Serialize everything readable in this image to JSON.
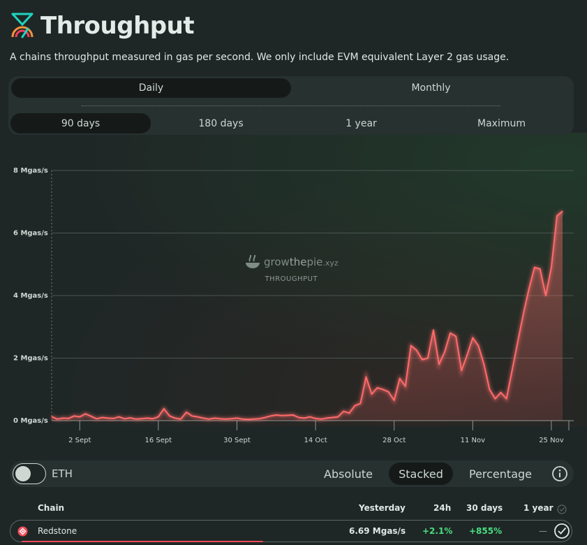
{
  "header": {
    "title": "Throughput",
    "subtitle": "A chains throughput measured in gas per second. We only include EVM equivalent Layer 2 gas usage."
  },
  "timespan_tabs": [
    "Daily",
    "Monthly"
  ],
  "range_tabs": [
    "90 days",
    "180 days",
    "1 year",
    "Maximum"
  ],
  "watermark": {
    "brand_grow": "grow",
    "brand_the": "the",
    "brand_pie": "pie",
    "brand_xyz": ".xyz",
    "caption": "THROUGHPUT"
  },
  "controls": {
    "toggle_label": "ETH",
    "modes": [
      "Absolute",
      "Stacked",
      "Percentage"
    ]
  },
  "table": {
    "headers": {
      "chain": "Chain",
      "yesterday": "Yesterday",
      "h24": "24h",
      "d30": "30 days",
      "y1": "1 year"
    },
    "rows": [
      {
        "chain": "Redstone",
        "yesterday": "6.69 Mgas/s",
        "h24": "+2.1%",
        "d30": "+855%",
        "y1": "—"
      }
    ]
  },
  "colors": {
    "series": "#ff6b6b",
    "positive": "#4ade80",
    "accent_redstone": "#ef4c5b"
  },
  "chart_data": {
    "type": "area",
    "series": [
      {
        "name": "Redstone",
        "values": [
          0.13,
          0.05,
          0.08,
          0.07,
          0.15,
          0.12,
          0.22,
          0.14,
          0.06,
          0.1,
          0.08,
          0.07,
          0.12,
          0.06,
          0.09,
          0.05,
          0.06,
          0.08,
          0.06,
          0.12,
          0.38,
          0.15,
          0.08,
          0.05,
          0.27,
          0.15,
          0.12,
          0.08,
          0.05,
          0.08,
          0.06,
          0.05,
          0.06,
          0.08,
          0.05,
          0.04,
          0.05,
          0.06,
          0.1,
          0.15,
          0.18,
          0.16,
          0.17,
          0.18,
          0.1,
          0.08,
          0.12,
          0.07,
          0.05,
          0.08,
          0.1,
          0.12,
          0.3,
          0.24,
          0.48,
          0.55,
          1.4,
          0.85,
          1.05,
          1.0,
          0.92,
          0.65,
          1.35,
          1.1,
          2.4,
          2.25,
          1.95,
          2.0,
          2.9,
          1.8,
          2.2,
          2.8,
          2.7,
          1.6,
          2.1,
          2.65,
          2.4,
          1.8,
          1.0,
          0.7,
          0.9,
          0.7,
          1.6,
          2.5,
          3.4,
          4.2,
          4.9,
          4.85,
          4.0,
          4.9,
          6.55,
          6.7
        ]
      }
    ],
    "x_start_date": "2024-08-28",
    "x_ticks": [
      "2 Sept",
      "16 Sept",
      "30 Sept",
      "14 Oct",
      "28 Oct",
      "11 Nov",
      "25 Nov"
    ],
    "x_tick_indices": [
      5,
      19,
      33,
      47,
      61,
      75,
      89
    ],
    "y_ticks": [
      "0 Mgas/s",
      "2 Mgas/s",
      "4 Mgas/s",
      "6 Mgas/s",
      "8 Mgas/s"
    ],
    "ylim": [
      0,
      8
    ],
    "title": "Throughput",
    "ylabel": "Mgas/s",
    "xlabel": ""
  }
}
